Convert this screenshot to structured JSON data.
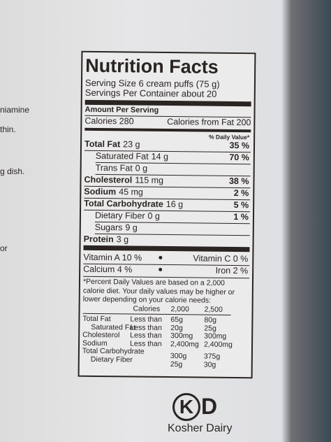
{
  "side_text": [
    "niamine",
    "thin.",
    "g dish.",
    "or"
  ],
  "label": {
    "title": "Nutrition Facts",
    "serving_size": "Serving Size 6 cream puffs (75 g)",
    "servings": "Servings Per Container about 20",
    "amount_header": "Amount Per Serving",
    "calories": "Calories 280",
    "calories_fat": "Calories from Fat 200",
    "dv_header": "% Daily Value*",
    "nutrients": [
      {
        "name": "Total Fat",
        "amount": "23 g",
        "dv": "35 %"
      },
      {
        "name": "Saturated Fat",
        "amount": "14 g",
        "dv": "70 %"
      },
      {
        "name": "Trans Fat",
        "amount": "0 g"
      },
      {
        "name": "Cholesterol",
        "amount": "115 mg",
        "dv": "38 %"
      },
      {
        "name": "Sodium",
        "amount": "45 mg",
        "dv": "2 %"
      },
      {
        "name": "Total Carbohydrate",
        "amount": "16 g",
        "dv": "5 %"
      },
      {
        "name": "Dietary Fiber",
        "amount": "0 g",
        "dv": "1 %"
      },
      {
        "name": "Sugars",
        "amount": "9 g"
      },
      {
        "name": "Protein",
        "amount": "3 g"
      }
    ],
    "vitamins": [
      [
        "Vitamin A 10 %",
        "Vitamin C 0 %"
      ],
      [
        "Calcium 4 %",
        "Iron 2 %"
      ]
    ],
    "footnote": "*Percent Daily Values are based on a 2,000 calorie diet. Your daily values may be higher or lower depending on your calorie needs:",
    "table": {
      "header": [
        "Calories",
        "2,000",
        "2,500"
      ],
      "rows": [
        {
          "name": "Total Fat",
          "qualifier": "Less than",
          "v2000": "65g",
          "v2500": "80g"
        },
        {
          "name": "Saturated Fat",
          "qualifier": "Less than",
          "v2000": "20g",
          "v2500": "25g"
        },
        {
          "name": "Cholesterol",
          "qualifier": "Less than",
          "v2000": "300mg",
          "v2500": "300mg"
        },
        {
          "name": "Sodium",
          "qualifier": "Less than",
          "v2000": "2,400mg",
          "v2500": "2,400mg"
        },
        {
          "name": "Total Carbohydrate",
          "v2000": "300g",
          "v2500": "375g"
        },
        {
          "name": "Dietary Fiber",
          "v2000": "25g",
          "v2500": "30g"
        }
      ]
    }
  },
  "kosher": {
    "symbol": "K",
    "letter": "D",
    "text": "Kosher Dairy"
  }
}
